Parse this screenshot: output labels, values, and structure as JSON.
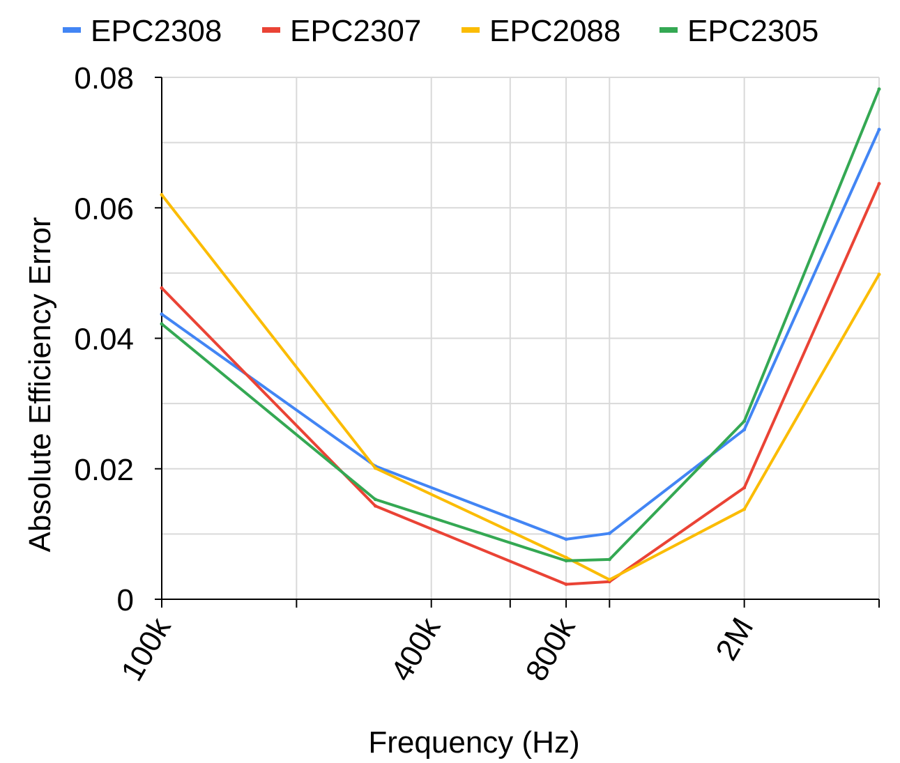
{
  "chart_data": {
    "type": "line",
    "title": "",
    "xlabel": "Frequency (Hz)",
    "ylabel": "Absolute Efficiency Error",
    "x_scale": "log",
    "x_unit": "Hz",
    "x": [
      100000,
      300000,
      800000,
      1000000,
      2000000,
      4000000
    ],
    "xlim": [
      100000,
      4000000
    ],
    "ylim": [
      0,
      0.08
    ],
    "y_ticks": [
      0,
      0.02,
      0.04,
      0.06,
      0.08
    ],
    "y_tick_labels": [
      "0",
      "0.02",
      "0.04",
      "0.06",
      "0.08"
    ],
    "x_gridlines": [
      100000,
      200000,
      400000,
      600000,
      800000,
      1000000,
      2000000,
      4000000
    ],
    "x_tick_labels": [
      {
        "value": 100000,
        "label": "100k"
      },
      {
        "value": 400000,
        "label": "400k"
      },
      {
        "value": 800000,
        "label": "800k"
      },
      {
        "value": 2000000,
        "label": "2M"
      }
    ],
    "grid": true,
    "legend_position": "top",
    "series": [
      {
        "name": "EPC2308",
        "color": "#4285f4",
        "values": [
          0.0437,
          0.0204,
          0.0092,
          0.0101,
          0.026,
          0.072
        ]
      },
      {
        "name": "EPC2307",
        "color": "#ea4335",
        "values": [
          0.0477,
          0.0143,
          0.0023,
          0.0027,
          0.0171,
          0.0637
        ]
      },
      {
        "name": "EPC2088",
        "color": "#fbbc04",
        "values": [
          0.062,
          0.0201,
          0.0064,
          0.003,
          0.0138,
          0.0498
        ]
      },
      {
        "name": "EPC2305",
        "color": "#34a853",
        "values": [
          0.0422,
          0.0153,
          0.0059,
          0.0061,
          0.0273,
          0.0782
        ]
      }
    ]
  }
}
